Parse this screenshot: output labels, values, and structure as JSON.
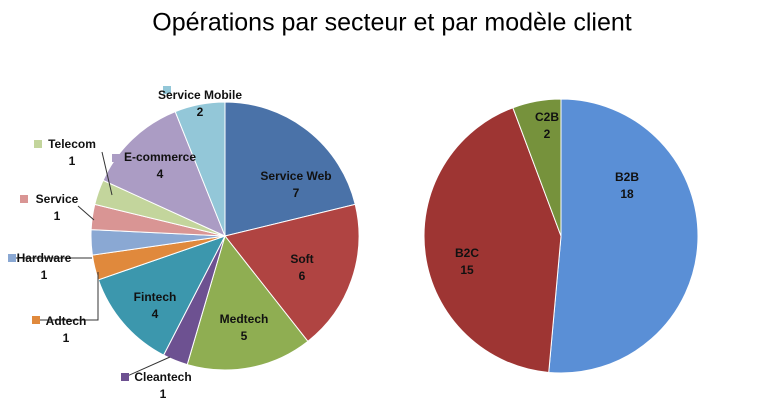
{
  "title": "Opérations par secteur et par modèle client",
  "chart_data": [
    {
      "type": "pie",
      "categories": [
        "Service Web",
        "Soft",
        "Medtech",
        "Cleantech",
        "Fintech",
        "Adtech",
        "Hardware",
        "Service",
        "Telecom",
        "E-commerce",
        "Service Mobile"
      ],
      "values": [
        7,
        6,
        5,
        1,
        4,
        1,
        1,
        1,
        1,
        4,
        2
      ],
      "colors": [
        "#4a72a8",
        "#b04442",
        "#8fae52",
        "#6d5191",
        "#3c97ad",
        "#e0893c",
        "#8aa8d3",
        "#d99594",
        "#c3d59c",
        "#ab9cc4",
        "#93c7d8"
      ]
    },
    {
      "type": "pie",
      "categories": [
        "B2B",
        "B2C",
        "C2B"
      ],
      "values": [
        18,
        15,
        2
      ],
      "colors": [
        "#5a8fd6",
        "#9e3533",
        "#76923c"
      ]
    }
  ]
}
